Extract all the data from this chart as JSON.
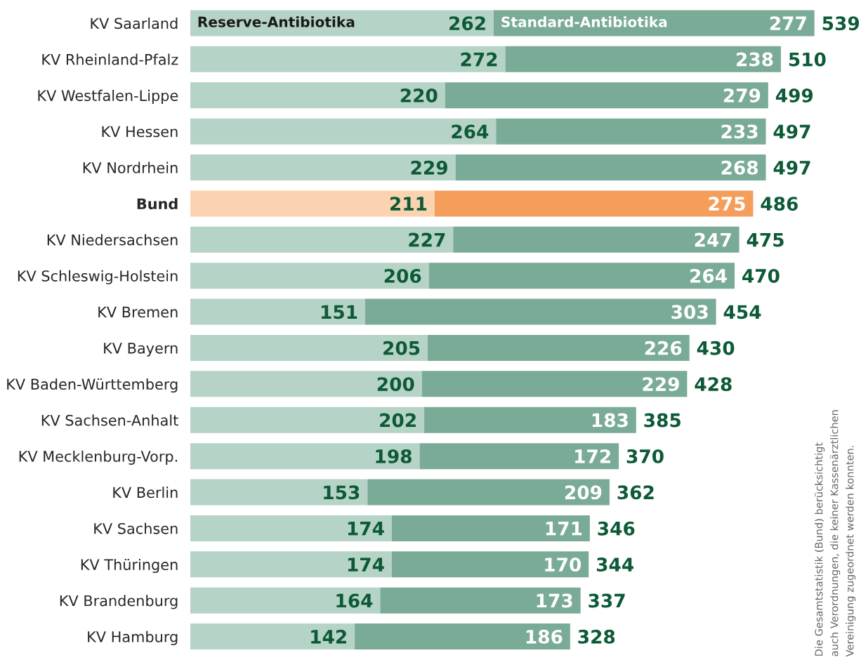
{
  "chart_data": {
    "type": "bar",
    "orientation": "horizontal",
    "stacked": true,
    "data_labels": true,
    "legend": false,
    "grid": false,
    "tick_labels": "y",
    "categories": [
      "KV Saarland",
      "KV Rheinland-Pfalz",
      "KV Westfalen-Lippe",
      "KV Hessen",
      "KV Nordrhein",
      "Bund",
      "KV Niedersachsen",
      "KV Schleswig-Holstein",
      "KV Bremen",
      "KV Bayern",
      "KV Baden-Württemberg",
      "KV Sachsen-Anhalt",
      "KV Mecklenburg-Vorp.",
      "KV Berlin",
      "KV Sachsen",
      "KV Thüringen",
      "KV Brandenburg",
      "KV Hamburg"
    ],
    "series": [
      {
        "name": "Reserve-Antibiotika",
        "color": "#b5d3c6",
        "colors": [
          null,
          null,
          null,
          null,
          null,
          "#fbd3b1",
          null,
          null,
          null,
          null,
          null,
          null,
          null,
          null,
          null,
          null,
          null,
          null
        ],
        "values": [
          262,
          272,
          220,
          264,
          229,
          211,
          227,
          206,
          151,
          205,
          200,
          202,
          198,
          153,
          174,
          174,
          164,
          142
        ]
      },
      {
        "name": "Standard-Antibiotika",
        "color": "#7aab96",
        "colors": [
          null,
          null,
          null,
          null,
          null,
          "#f59e5b",
          null,
          null,
          null,
          null,
          null,
          null,
          null,
          null,
          null,
          null,
          null,
          null
        ],
        "values": [
          277,
          238,
          279,
          233,
          268,
          275,
          247,
          264,
          303,
          226,
          229,
          183,
          172,
          209,
          171,
          170,
          173,
          186
        ]
      }
    ],
    "totals": [
      "539",
      "510",
      "499",
      "497",
      "497",
      "486",
      "475",
      "470",
      "454",
      "430",
      "428",
      "385",
      "370",
      "362",
      "346",
      "344",
      "337",
      "328"
    ],
    "annotations": [
      "Die Gesamtstatistik (Bund) berücksichtigt",
      "auch Verordnungen, die keiner Kassenärztlichen",
      "Vereinigung zugeordnet werden konnten."
    ]
  }
}
